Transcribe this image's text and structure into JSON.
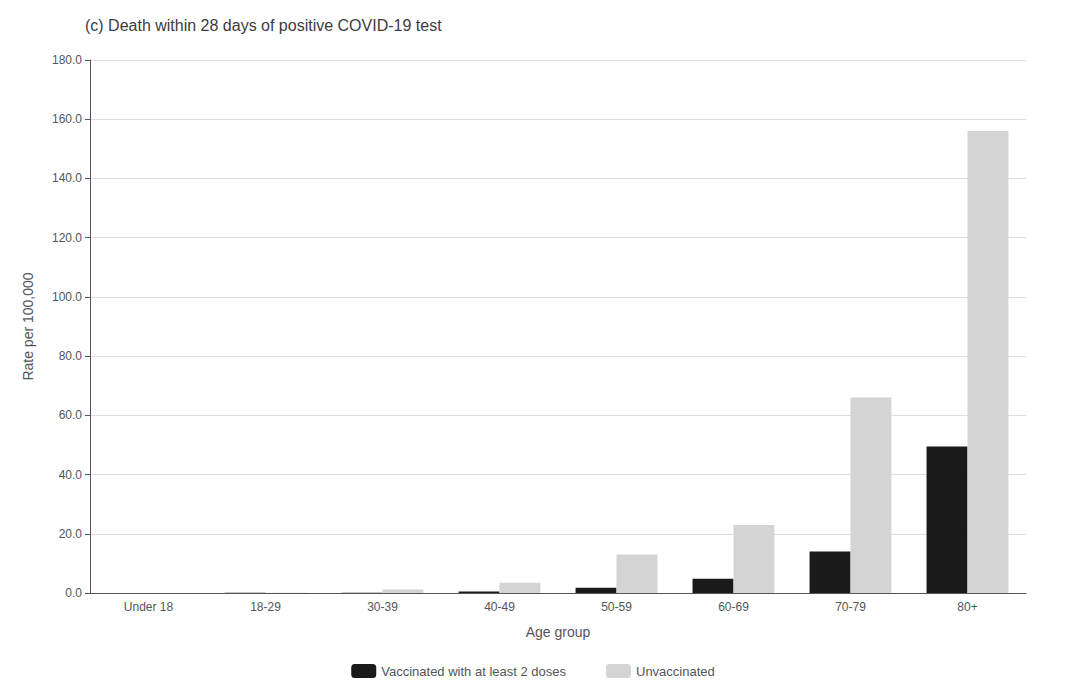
{
  "chart_data": {
    "type": "bar",
    "title": "(c) Death within 28 days of positive COVID-19 test",
    "categories": [
      "Under 18",
      "18-29",
      "30-39",
      "40-49",
      "50-59",
      "60-69",
      "70-79",
      "80+"
    ],
    "series": [
      {
        "name": "Vaccinated with at least 2 doses",
        "color": "#1a1a1a",
        "values": [
          0.0,
          0.05,
          0.1,
          0.5,
          1.8,
          4.8,
          14.0,
          49.5
        ]
      },
      {
        "name": "Unvaccinated",
        "color": "#d4d4d4",
        "values": [
          0.0,
          0.1,
          1.2,
          3.5,
          13.0,
          23.0,
          66.0,
          156.0
        ]
      }
    ],
    "xlabel": "Age group",
    "ylabel": "Rate per 100,000",
    "ylim": [
      0,
      180.0
    ],
    "yticks": [
      {
        "value": 0.0,
        "label": "0.0"
      },
      {
        "value": 20.0,
        "label": "20.0"
      },
      {
        "value": 40.0,
        "label": "40.0"
      },
      {
        "value": 60.0,
        "label": "60.0"
      },
      {
        "value": 80.0,
        "label": "80.0"
      },
      {
        "value": 100.0,
        "label": "100.0"
      },
      {
        "value": 120.0,
        "label": "120.0"
      },
      {
        "value": 140.0,
        "label": "140.0"
      },
      {
        "value": 160.0,
        "label": "160.0"
      },
      {
        "value": 180.0,
        "label": "180.0"
      }
    ],
    "grid": true,
    "legend": "bottom"
  }
}
